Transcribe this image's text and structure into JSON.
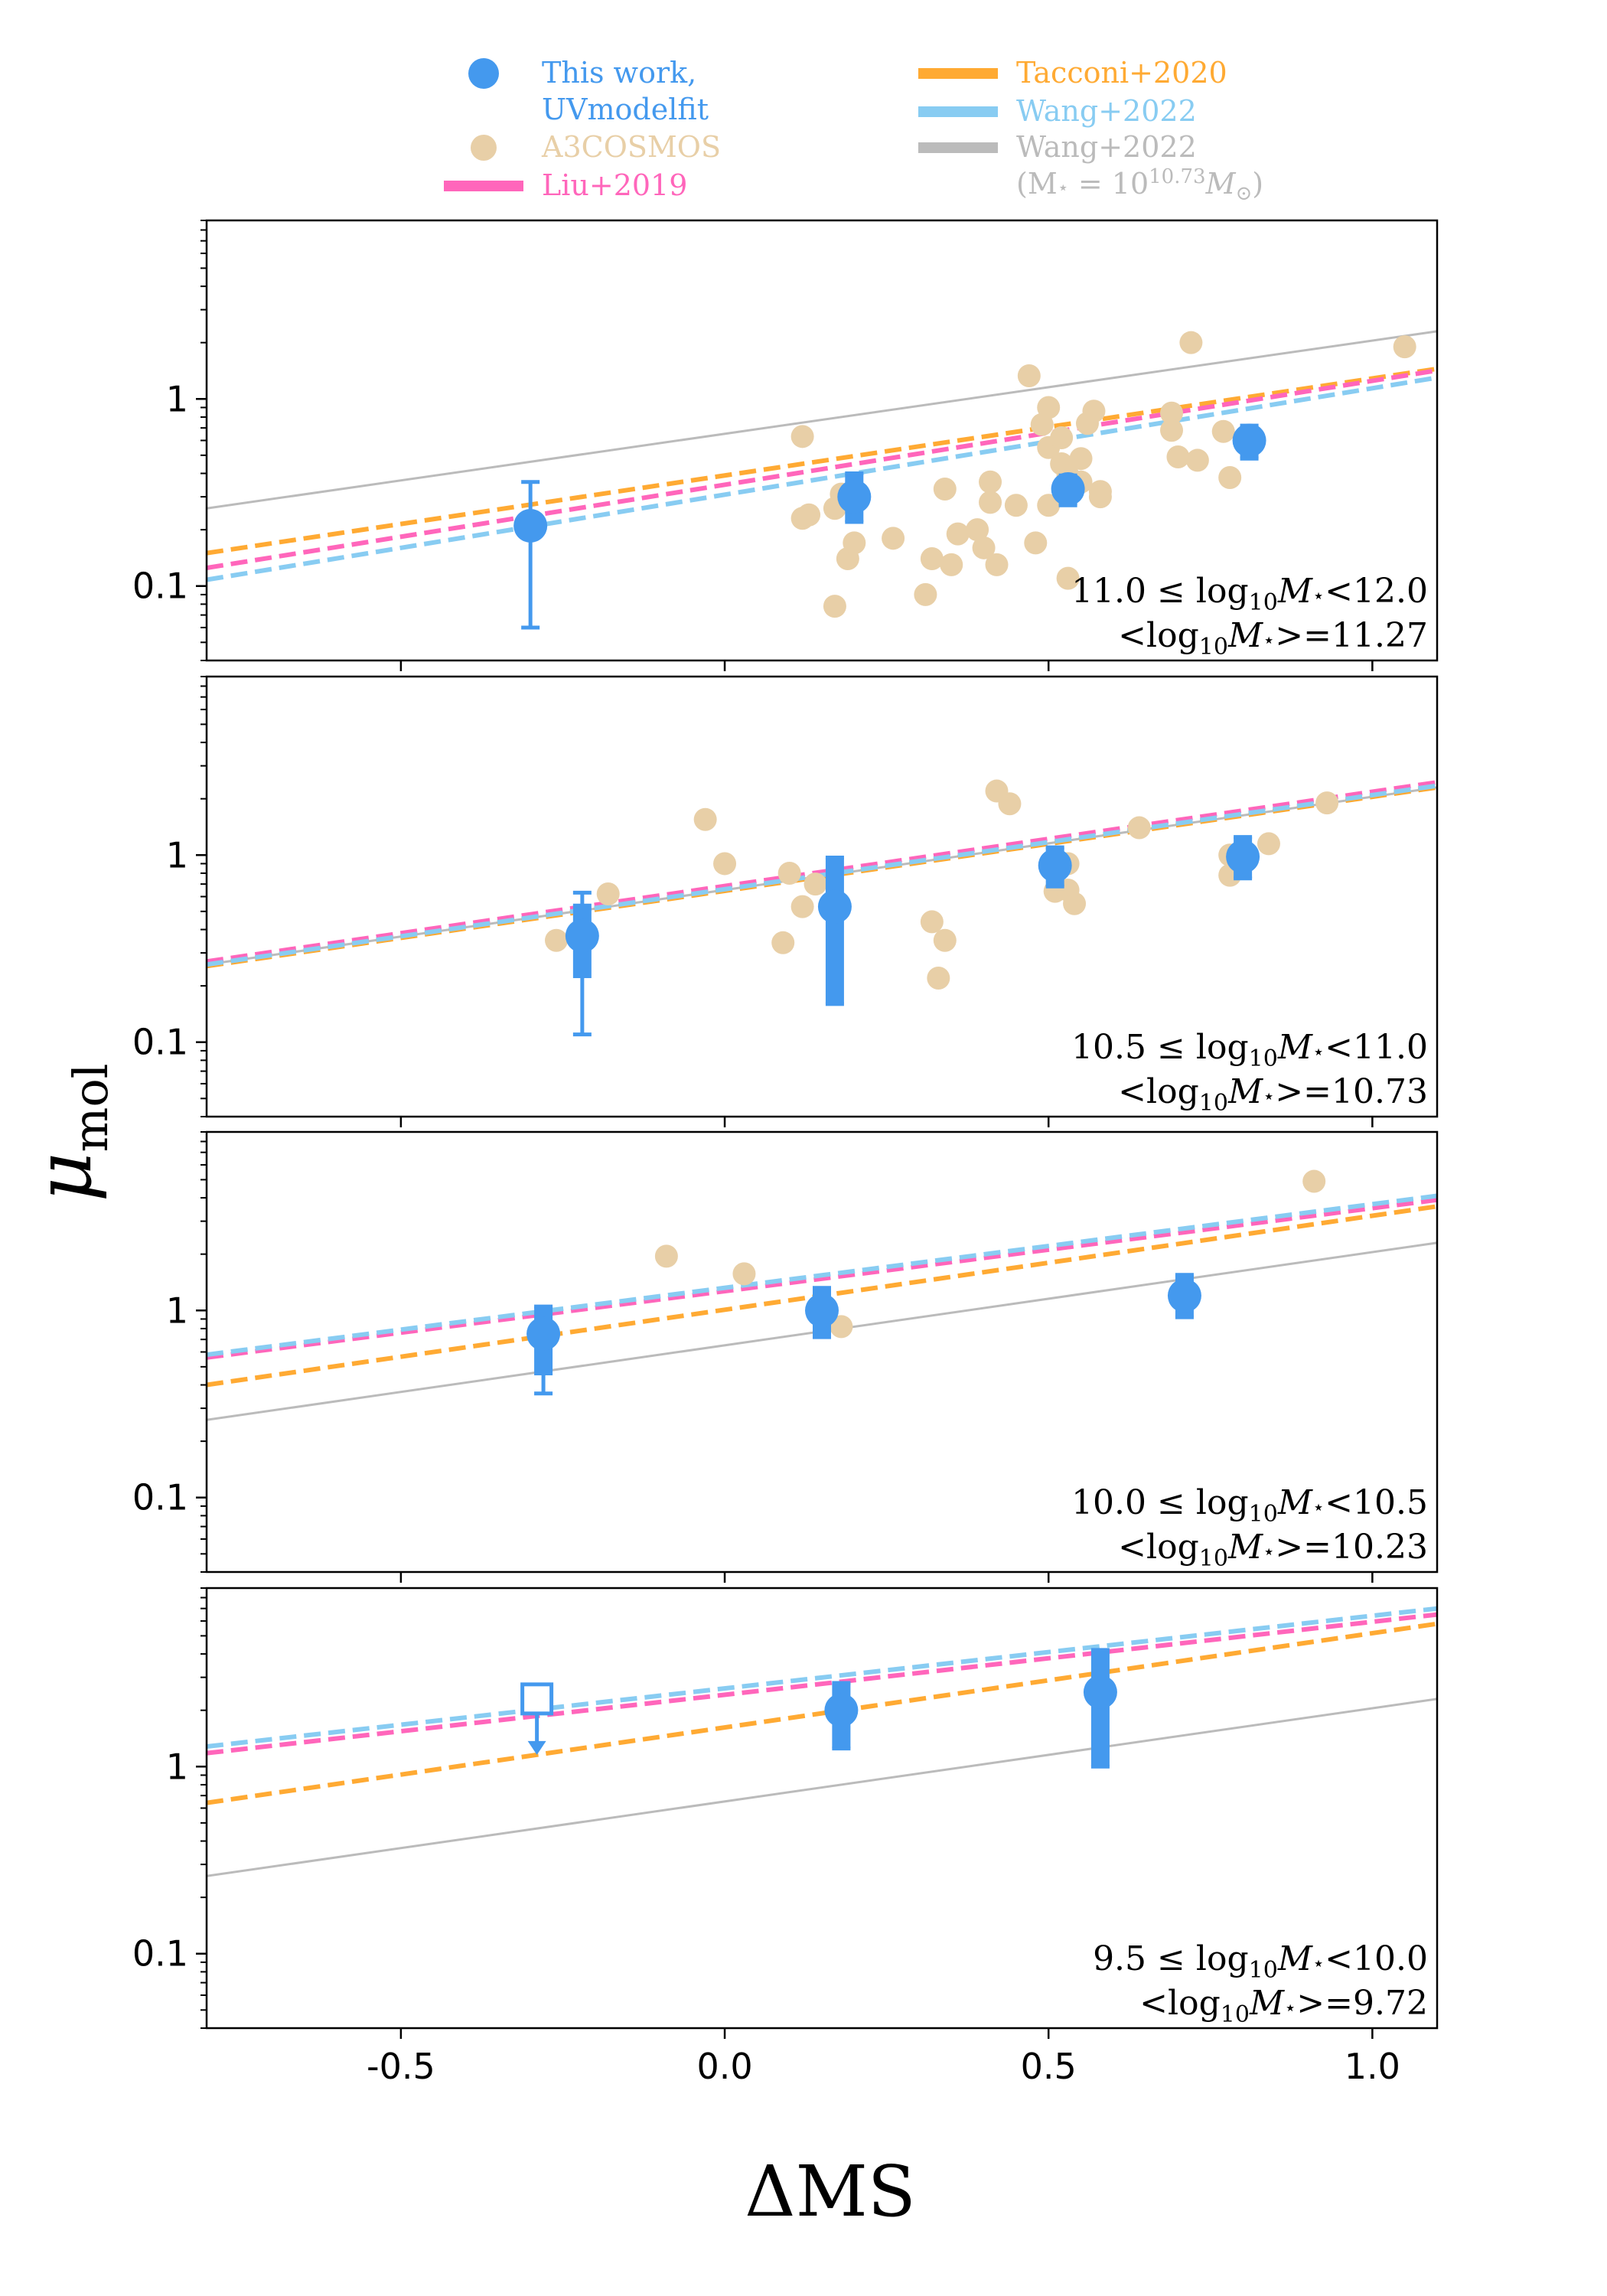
{
  "chart_data": {
    "type": "scatter",
    "shared_x_axis": {
      "label": "ΔMS",
      "range": [
        -0.8,
        1.1
      ],
      "ticks": [
        -0.5,
        0.0,
        0.5,
        1.0
      ],
      "tick_labels": [
        "-0.5",
        "0.0",
        "0.5",
        "1.0"
      ]
    },
    "shared_y_axis": {
      "label": "μ",
      "label_subscript": "mol",
      "scale": "log",
      "range": [
        0.04,
        9.0
      ],
      "ticks": [
        0.1,
        1
      ],
      "tick_labels": [
        "0.1",
        "1"
      ]
    },
    "legend": {
      "placement": "top",
      "entries": [
        {
          "id": "this_work",
          "label_line1": "This work,",
          "label_line2": "UVmodelfit",
          "marker": "circle",
          "color": "#4499ee"
        },
        {
          "id": "a3cosmos",
          "label_line1": "A3COSMOS",
          "label_line2": "",
          "marker": "circle",
          "color": "#e8cfa7"
        },
        {
          "id": "liu2019",
          "label_line1": "Liu+2019",
          "label_line2": "",
          "marker": "line",
          "color": "#ff66bb"
        },
        {
          "id": "tacconi2020",
          "label_line1": "Tacconi+2020",
          "label_line2": "",
          "marker": "line",
          "color": "#ffaa33"
        },
        {
          "id": "wang2022",
          "label_line1": "Wang+2022",
          "label_line2": "",
          "marker": "line",
          "color": "#88ccf2"
        },
        {
          "id": "wang2022_fixed",
          "label_line1": "Wang+2022",
          "label_line2": "(M⋆ = 10^10.73 M⊙)",
          "label_line2_parts": [
            "(M",
            "⋆",
            " = 10",
            "10.73",
            "M",
            "⊙",
            ")"
          ],
          "marker": "line",
          "color": "#bbbbbb"
        }
      ]
    },
    "colors": {
      "this_work": "#4499ee",
      "a3cosmos": "#e8cfa7",
      "liu2019": "#ff66bb",
      "tacconi2020": "#ffaa33",
      "wang2022": "#88ccf2",
      "wang2022_fixed": "#bbbbbb"
    },
    "panels": [
      {
        "name": "mass-bin-11.0-12.0",
        "annotation_line1": "11.0 ≤ log10M⋆<12.0",
        "annotation_line1_parts": [
          "11.0",
          "≤",
          "log",
          "10",
          "M",
          "⋆",
          "<12.0"
        ],
        "annotation_line2": "<log10M⋆>=11.27",
        "annotation_line2_parts": [
          "<log",
          "10",
          "M",
          "⋆",
          ">=11.27"
        ],
        "lines": {
          "liu2019": [
            [
              -0.8,
              0.125
            ],
            [
              1.1,
              1.42
            ]
          ],
          "tacconi2020": [
            [
              -0.8,
              0.15
            ],
            [
              1.1,
              1.45
            ]
          ],
          "wang2022": [
            [
              -0.8,
              0.108
            ],
            [
              1.1,
              1.3
            ]
          ],
          "wang2022_fixed": [
            [
              -0.8,
              0.26
            ],
            [
              1.1,
              2.3
            ]
          ]
        },
        "this_work": [
          {
            "x": -0.3,
            "y": 0.21,
            "ylow": 0.06,
            "yhigh": 0.36,
            "thick_low": 0.19,
            "thick_high": 0.23
          },
          {
            "x": 0.2,
            "y": 0.3,
            "ylow": 0.22,
            "yhigh": 0.4,
            "thick_low": 0.22,
            "thick_high": 0.4
          },
          {
            "x": 0.53,
            "y": 0.33,
            "ylow": 0.27,
            "yhigh": 0.39,
            "thick_low": 0.27,
            "thick_high": 0.39
          },
          {
            "x": 0.81,
            "y": 0.6,
            "ylow": 0.48,
            "yhigh": 0.72,
            "thick_low": 0.48,
            "thick_high": 0.72
          }
        ],
        "a3cosmos": [
          [
            0.12,
            0.63
          ],
          [
            0.12,
            0.23
          ],
          [
            0.13,
            0.24
          ],
          [
            0.17,
            0.26
          ],
          [
            0.17,
            0.078
          ],
          [
            0.18,
            0.31
          ],
          [
            0.19,
            0.14
          ],
          [
            0.2,
            0.17
          ],
          [
            0.26,
            0.18
          ],
          [
            0.31,
            0.09
          ],
          [
            0.32,
            0.14
          ],
          [
            0.34,
            0.33
          ],
          [
            0.35,
            0.13
          ],
          [
            0.36,
            0.19
          ],
          [
            0.39,
            0.2
          ],
          [
            0.4,
            0.16
          ],
          [
            0.41,
            0.28
          ],
          [
            0.41,
            0.36
          ],
          [
            0.42,
            0.13
          ],
          [
            0.45,
            0.27
          ],
          [
            0.47,
            1.33
          ],
          [
            0.48,
            0.17
          ],
          [
            0.49,
            0.73
          ],
          [
            0.5,
            0.27
          ],
          [
            0.5,
            0.9
          ],
          [
            0.5,
            0.55
          ],
          [
            0.52,
            0.45
          ],
          [
            0.52,
            0.62
          ],
          [
            0.53,
            0.11
          ],
          [
            0.53,
            0.39
          ],
          [
            0.55,
            0.48
          ],
          [
            0.55,
            0.36
          ],
          [
            0.56,
            0.74
          ],
          [
            0.57,
            0.86
          ],
          [
            0.58,
            0.3
          ],
          [
            0.58,
            0.32
          ],
          [
            0.69,
            0.84
          ],
          [
            0.69,
            0.68
          ],
          [
            0.7,
            0.49
          ],
          [
            0.72,
            2.0
          ],
          [
            0.73,
            0.47
          ],
          [
            0.77,
            0.67
          ],
          [
            0.78,
            0.38
          ],
          [
            1.05,
            1.9
          ]
        ]
      },
      {
        "name": "mass-bin-10.5-11.0",
        "annotation_line1": "10.5 ≤ log10M⋆<11.0",
        "annotation_line1_parts": [
          "10.5",
          "≤",
          "log",
          "10",
          "M",
          "⋆",
          "<11.0"
        ],
        "annotation_line2": "<log10M⋆>=10.73",
        "annotation_line2_parts": [
          "<log",
          "10",
          "M",
          "⋆",
          ">=10.73"
        ],
        "lines": {
          "liu2019": [
            [
              -0.8,
              0.27
            ],
            [
              1.1,
              2.45
            ]
          ],
          "tacconi2020": [
            [
              -0.8,
              0.255
            ],
            [
              1.1,
              2.3
            ]
          ],
          "wang2022": [
            [
              -0.8,
              0.26
            ],
            [
              1.1,
              2.35
            ]
          ],
          "wang2022_fixed": [
            [
              -0.8,
              0.26
            ],
            [
              1.1,
              2.3
            ]
          ]
        },
        "this_work": [
          {
            "x": -0.22,
            "y": 0.37,
            "ylow": 0.11,
            "yhigh": 0.63,
            "thick_low": 0.22,
            "thick_high": 0.55
          },
          {
            "x": 0.17,
            "y": 0.53,
            "ylow": 0.16,
            "yhigh": 0.97,
            "thick_low": 0.16,
            "thick_high": 0.97
          },
          {
            "x": 0.51,
            "y": 0.88,
            "ylow": 0.68,
            "yhigh": 1.1,
            "thick_low": 0.68,
            "thick_high": 1.1
          },
          {
            "x": 0.8,
            "y": 0.98,
            "ylow": 0.75,
            "yhigh": 1.25,
            "thick_low": 0.75,
            "thick_high": 1.25
          }
        ],
        "a3cosmos": [
          [
            -0.26,
            0.35
          ],
          [
            -0.18,
            0.62
          ],
          [
            -0.03,
            1.55
          ],
          [
            0.0,
            0.9
          ],
          [
            0.09,
            0.34
          ],
          [
            0.1,
            0.8
          ],
          [
            0.12,
            0.53
          ],
          [
            0.14,
            0.7
          ],
          [
            0.32,
            0.44
          ],
          [
            0.33,
            0.22
          ],
          [
            0.34,
            0.35
          ],
          [
            0.42,
            2.2
          ],
          [
            0.44,
            1.88
          ],
          [
            0.51,
            0.64
          ],
          [
            0.53,
            0.65
          ],
          [
            0.53,
            0.9
          ],
          [
            0.54,
            0.55
          ],
          [
            0.64,
            1.4
          ],
          [
            0.78,
            0.78
          ],
          [
            0.78,
            1.0
          ],
          [
            0.84,
            1.15
          ],
          [
            0.93,
            1.9
          ]
        ]
      },
      {
        "name": "mass-bin-10.0-10.5",
        "annotation_line1": "10.0 ≤ log10M⋆<10.5",
        "annotation_line1_parts": [
          "10.0",
          "≤",
          "log",
          "10",
          "M",
          "⋆",
          "<10.5"
        ],
        "annotation_line2": "<log10M⋆>=10.23",
        "annotation_line2_parts": [
          "<log",
          "10",
          "M",
          "⋆",
          ">=10.23"
        ],
        "lines": {
          "liu2019": [
            [
              -0.8,
              0.56
            ],
            [
              1.1,
              3.9
            ]
          ],
          "tacconi2020": [
            [
              -0.8,
              0.4
            ],
            [
              1.1,
              3.6
            ]
          ],
          "wang2022": [
            [
              -0.8,
              0.58
            ],
            [
              1.1,
              4.1
            ]
          ],
          "wang2022_fixed": [
            [
              -0.8,
              0.26
            ],
            [
              1.1,
              2.3
            ]
          ]
        },
        "this_work": [
          {
            "x": -0.28,
            "y": 0.75,
            "ylow": 0.36,
            "yhigh": 1.05,
            "thick_low": 0.45,
            "thick_high": 1.05
          },
          {
            "x": 0.15,
            "y": 1.0,
            "ylow": 0.72,
            "yhigh": 1.32,
            "thick_low": 0.72,
            "thick_high": 1.32
          },
          {
            "x": 0.71,
            "y": 1.2,
            "ylow": 0.92,
            "yhigh": 1.55,
            "thick_low": 0.92,
            "thick_high": 1.55
          }
        ],
        "a3cosmos": [
          [
            -0.09,
            1.95
          ],
          [
            0.03,
            1.57
          ],
          [
            0.18,
            0.82
          ],
          [
            0.91,
            4.9
          ]
        ]
      },
      {
        "name": "mass-bin-9.5-10.0",
        "annotation_line1": "9.5 ≤ log10M⋆<10.0",
        "annotation_line1_parts": [
          "9.5",
          "≤",
          "log",
          "10",
          "M",
          "⋆",
          "<10.0"
        ],
        "annotation_line2": "<log10M⋆>=9.72",
        "annotation_line2_parts": [
          "<log",
          "10",
          "M",
          "⋆",
          ">=9.72"
        ],
        "lines": {
          "liu2019": [
            [
              -0.8,
              1.18
            ],
            [
              1.1,
              6.5
            ]
          ],
          "tacconi2020": [
            [
              -0.8,
              0.64
            ],
            [
              1.1,
              5.8
            ]
          ],
          "wang2022": [
            [
              -0.8,
              1.28
            ],
            [
              1.1,
              7.0
            ]
          ],
          "wang2022_fixed": [
            [
              -0.8,
              0.26
            ],
            [
              1.1,
              2.3
            ]
          ]
        },
        "this_work": [
          {
            "x": 0.18,
            "y": 2.0,
            "ylow": 1.25,
            "yhigh": 2.8,
            "thick_low": 1.25,
            "thick_high": 2.8
          },
          {
            "x": 0.58,
            "y": 2.5,
            "ylow": 1.0,
            "yhigh": 4.2,
            "thick_low": 1.0,
            "thick_high": 4.2
          }
        ],
        "upper_limits": [
          {
            "x": -0.29,
            "y": 2.3,
            "arrow_to": 1.2
          }
        ],
        "a3cosmos": []
      }
    ]
  }
}
